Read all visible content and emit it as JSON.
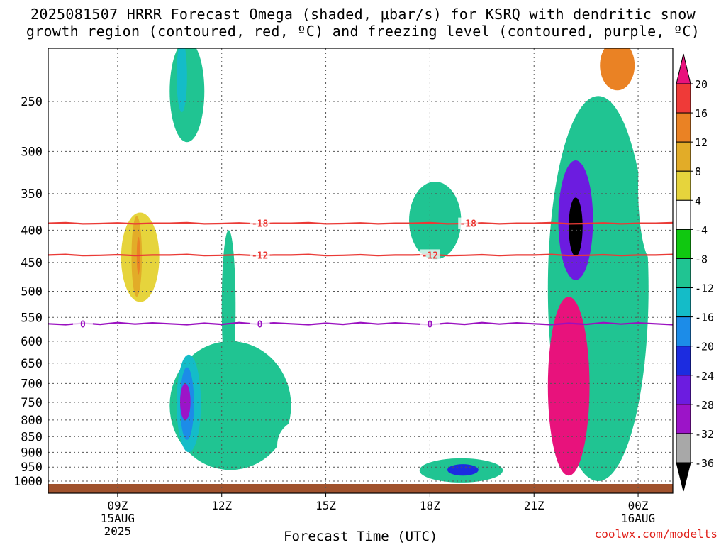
{
  "title": {
    "line1": "2025081507 HRRR Forecast Omega (shaded, μbar/s) for KSRQ with dendritic snow",
    "line2": "growth region (contoured, red, ºC) and freezing level (contoured, purple, ºC)"
  },
  "credit": "coolwx.com/modelts",
  "chart_data": {
    "type": "heatmap",
    "title": "2025081507 HRRR Forecast Omega (shaded, μbar/s) for KSRQ with dendritic snow growth region (contoured, red, ºC) and freezing level (contoured, purple, ºC)",
    "xlabel": "Forecast Time (UTC)",
    "ylabel": "",
    "x_range_hours": [
      7,
      25
    ],
    "x_ticks": [
      {
        "hour": 9,
        "label": "09Z",
        "sub": [
          "15AUG",
          "2025"
        ]
      },
      {
        "hour": 12,
        "label": "12Z",
        "sub": []
      },
      {
        "hour": 15,
        "label": "15Z",
        "sub": []
      },
      {
        "hour": 18,
        "label": "18Z",
        "sub": []
      },
      {
        "hour": 21,
        "label": "21Z",
        "sub": []
      },
      {
        "hour": 24,
        "label": "00Z",
        "sub": [
          "16AUG"
        ]
      }
    ],
    "y_scale": "log",
    "y_range_mb": [
      1030,
      200
    ],
    "y_ticks": [
      250,
      300,
      350,
      400,
      450,
      500,
      550,
      600,
      650,
      700,
      750,
      800,
      850,
      900,
      950,
      1000
    ],
    "grid": true,
    "colorbar": {
      "unit": "μbar/s",
      "labels": [
        "20",
        "16",
        "12",
        "8",
        "4",
        "-4",
        "-8",
        "-12",
        "-16",
        "-20",
        "-24",
        "-28",
        "-32",
        "-36"
      ],
      "bins": [
        {
          "from": 20,
          "to": 24,
          "color": "#e8127c"
        },
        {
          "from": 16,
          "to": 20,
          "color": "#ef3a38"
        },
        {
          "from": 12,
          "to": 16,
          "color": "#ea8224"
        },
        {
          "from": 8,
          "to": 12,
          "color": "#e2ac28"
        },
        {
          "from": 4,
          "to": 8,
          "color": "#e6d43c"
        },
        {
          "from": -4,
          "to": 4,
          "color": "#ffffff"
        },
        {
          "from": -8,
          "to": -4,
          "color": "#10c810"
        },
        {
          "from": -12,
          "to": -8,
          "color": "#20c492"
        },
        {
          "from": -16,
          "to": -12,
          "color": "#14bcc8"
        },
        {
          "from": -20,
          "to": -16,
          "color": "#1c8ce8"
        },
        {
          "from": -24,
          "to": -20,
          "color": "#1c2ce0"
        },
        {
          "from": -28,
          "to": -24,
          "color": "#6c1ce0"
        },
        {
          "from": -32,
          "to": -28,
          "color": "#9c14c8"
        },
        {
          "from": -36,
          "to": -32,
          "color": "#a8a8a8"
        },
        {
          "from": -40,
          "to": -36,
          "color": "#000000"
        }
      ]
    },
    "contours": [
      {
        "name": "-18",
        "color": "#ea3a36",
        "label": "-18",
        "pressure_mb": 390,
        "label_hours": [
          13.1,
          19.1
        ]
      },
      {
        "name": "-12",
        "color": "#ea3a36",
        "label": "-12",
        "pressure_mb": 438,
        "label_hours": [
          13.1,
          18.0
        ]
      },
      {
        "name": "0",
        "color": "#9a10c0",
        "label": "0",
        "pressure_mb": 563,
        "label_hours": [
          8.0,
          13.1,
          18.0
        ]
      }
    ],
    "features": [
      {
        "omega": 8,
        "x": [
          9.1,
          10.2
        ],
        "y_mb": [
          375,
          520
        ]
      },
      {
        "omega": 12,
        "x": [
          9.4,
          9.7
        ],
        "y_mb": [
          380,
          510
        ]
      },
      {
        "omega": 16,
        "x": [
          9.55,
          9.65
        ],
        "y_mb": [
          410,
          470
        ]
      },
      {
        "omega": -8,
        "x": [
          10.5,
          11.5
        ],
        "y_mb": [
          200,
          290
        ]
      },
      {
        "omega": -12,
        "x": [
          10.7,
          11.0
        ],
        "y_mb": [
          200,
          260
        ]
      },
      {
        "omega": 4,
        "x": [
          11.9,
          13.4
        ],
        "y_mb": [
          200,
          340
        ]
      },
      {
        "omega": -8,
        "x": [
          10.5,
          14.0
        ],
        "y_mb": [
          600,
          960
        ]
      },
      {
        "omega": -12,
        "x": [
          10.7,
          11.4
        ],
        "y_mb": [
          630,
          900
        ]
      },
      {
        "omega": -16,
        "x": [
          10.8,
          11.2
        ],
        "y_mb": [
          660,
          860
        ]
      },
      {
        "omega": -28,
        "x": [
          10.8,
          11.1
        ],
        "y_mb": [
          700,
          800
        ]
      },
      {
        "omega": -8,
        "x": [
          12.0,
          12.4
        ],
        "y_mb": [
          400,
          700
        ]
      },
      {
        "omega": 4,
        "x": [
          8.3,
          10.5
        ],
        "y_mb": [
          780,
          960
        ]
      },
      {
        "omega": 4,
        "x": [
          13.6,
          15.0
        ],
        "y_mb": [
          800,
          960
        ]
      },
      {
        "omega": -8,
        "x": [
          17.4,
          18.9
        ],
        "y_mb": [
          335,
          445
        ]
      },
      {
        "omega": 4,
        "x": [
          16.2,
          19.3
        ],
        "y_mb": [
          600,
          960
        ]
      },
      {
        "omega": -8,
        "x": [
          17.7,
          20.1
        ],
        "y_mb": [
          920,
          1005
        ]
      },
      {
        "omega": -20,
        "x": [
          18.5,
          19.4
        ],
        "y_mb": [
          940,
          980
        ]
      },
      {
        "omega": 4,
        "x": [
          20.8,
          22.0
        ],
        "y_mb": [
          280,
          360
        ]
      },
      {
        "omega": 4,
        "x": [
          21.2,
          24.8
        ],
        "y_mb": [
          200,
          265
        ]
      },
      {
        "omega": 16,
        "x": [
          22.9,
          23.9
        ],
        "y_mb": [
          200,
          240
        ]
      },
      {
        "omega": -8,
        "x": [
          21.4,
          24.3
        ],
        "y_mb": [
          245,
          1000
        ]
      },
      {
        "omega": -24,
        "x": [
          21.7,
          22.7
        ],
        "y_mb": [
          310,
          480
        ]
      },
      {
        "omega": -36,
        "x": [
          22.0,
          22.4
        ],
        "y_mb": [
          355,
          440
        ]
      },
      {
        "omega": 24,
        "x": [
          21.4,
          22.6
        ],
        "y_mb": [
          510,
          980
        ]
      },
      {
        "omega": 4,
        "x": [
          24.0,
          24.9
        ],
        "y_mb": [
          260,
          450
        ]
      }
    ]
  }
}
